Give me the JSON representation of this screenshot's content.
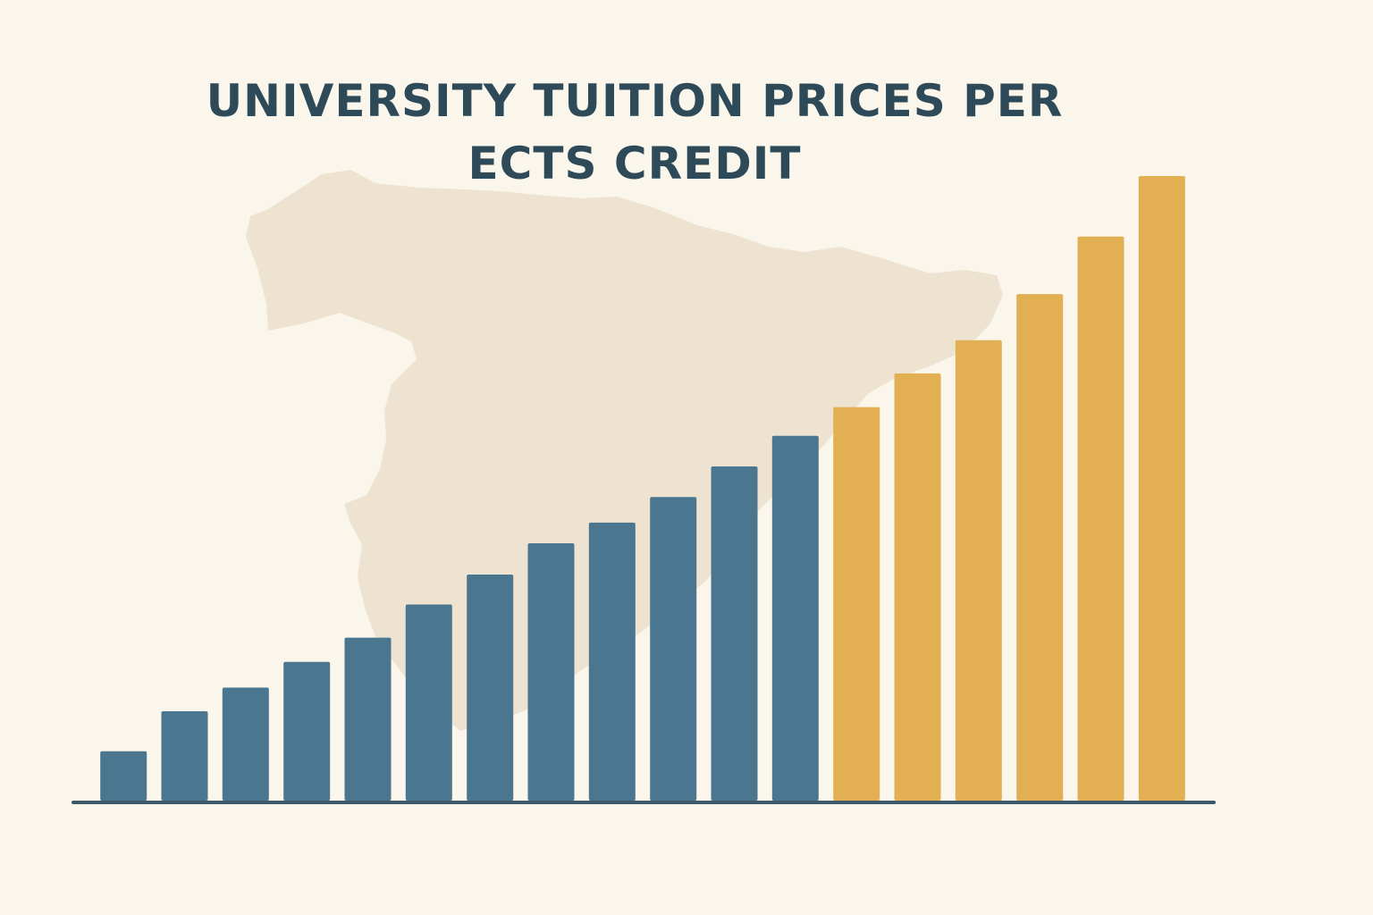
{
  "chart_data": {
    "type": "bar",
    "title": "UNIVERSITY TUITION PRICES PER ECTS CREDIT",
    "xlabel": "",
    "ylabel": "",
    "ylim": [
      0,
      100
    ],
    "grid": false,
    "legend": "none",
    "background_motif": "map of Spain silhouette",
    "values": [
      7.9,
      14.3,
      18.1,
      22.2,
      26.1,
      31.4,
      36.2,
      41.2,
      44.5,
      48.6,
      53.5,
      58.4,
      63.0,
      68.4,
      73.7,
      81.1,
      90.3,
      100.0
    ],
    "colors": {
      "group_a": "#4a7690",
      "group_b": "#e2b052",
      "axis": "#3e5868",
      "map": "#ede3d0"
    },
    "color_groups": [
      "a",
      "a",
      "a",
      "a",
      "a",
      "a",
      "a",
      "a",
      "a",
      "a",
      "a",
      "a",
      "b",
      "b",
      "b",
      "b",
      "b",
      "b"
    ]
  }
}
